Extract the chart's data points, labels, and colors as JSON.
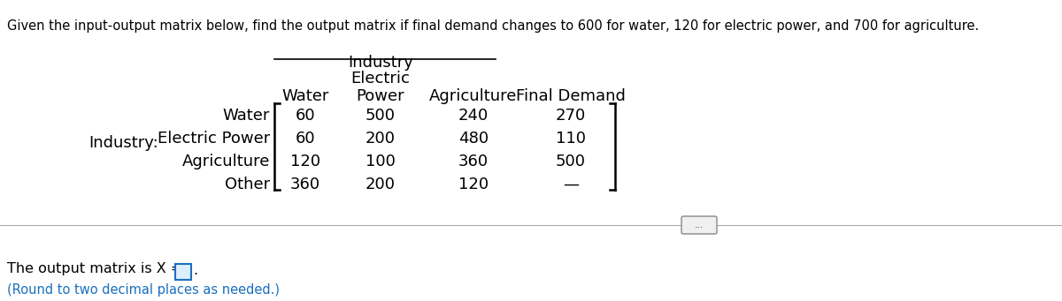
{
  "title": "Given the input-output matrix below, find the output matrix if final demand changes to 600 for water, 120 for electric power, and 700 for agriculture.",
  "matrix_data": [
    [
      "60",
      "500",
      "240",
      "270"
    ],
    [
      "60",
      "200",
      "480",
      "110"
    ],
    [
      "120",
      "100",
      "360",
      "500"
    ],
    [
      "360",
      "200",
      "120",
      "—"
    ]
  ],
  "row_labels": [
    "Water",
    "Electric Power",
    "Agriculture",
    "Other"
  ],
  "col_header1": "Industry",
  "col_header2": "Electric",
  "col_headers": [
    "Water",
    "Power",
    "Agriculture",
    "Final Demand"
  ],
  "industry_label": "Industry:",
  "bottom_text": "The output matrix is X =",
  "bottom_subtext": "(Round to two decimal places as needed.)",
  "bg_color": "#ffffff",
  "text_color": "#000000",
  "blue_color": "#1a6fbd",
  "divider_color": "#aaaaaa",
  "btn_edge_color": "#888888",
  "btn_face_color": "#f0f0f0",
  "box_edge_color": "#1a6fbd",
  "box_face_color": "#ddeeff"
}
